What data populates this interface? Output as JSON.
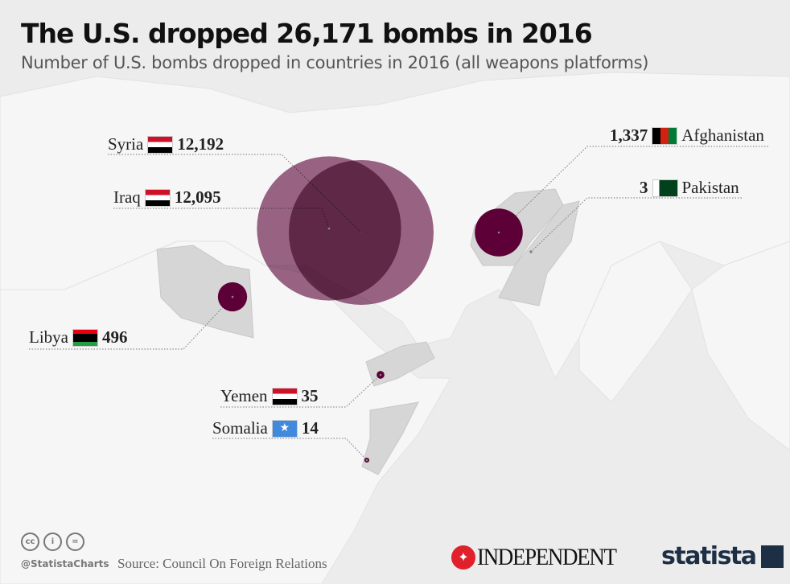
{
  "header": {
    "title": "The U.S. dropped 26,171 bombs in 2016",
    "subtitle": "Number of U.S. bombs dropped in countries in 2016 (all weapons platforms)"
  },
  "colors": {
    "bubble": "#5e0038",
    "overlap": "#250010",
    "highlight_land": "#d6d6d6",
    "land": "#f4f4f4",
    "sea": "#ececec"
  },
  "countries": [
    {
      "name": "Syria",
      "value": "12,192",
      "bombs": 12192,
      "flag": "syria-flag"
    },
    {
      "name": "Iraq",
      "value": "12,095",
      "bombs": 12095,
      "flag": "iraq-flag"
    },
    {
      "name": "Afghanistan",
      "value": "1,337",
      "bombs": 1337,
      "flag": "afghanistan-flag"
    },
    {
      "name": "Pakistan",
      "value": "3",
      "bombs": 3,
      "flag": "pakistan-flag"
    },
    {
      "name": "Libya",
      "value": "496",
      "bombs": 496,
      "flag": "libya-flag"
    },
    {
      "name": "Yemen",
      "value": "35",
      "bombs": 35,
      "flag": "yemen-flag"
    },
    {
      "name": "Somalia",
      "value": "14",
      "bombs": 14,
      "flag": "somalia-flag"
    }
  ],
  "footer": {
    "handle": "@StatistaCharts",
    "source": "Source: Council On Foreign Relations",
    "license_icons": [
      "cc-icon",
      "by-icon",
      "nd-icon"
    ],
    "independent_logo": "INDEPENDENT",
    "statista_logo": "statista"
  }
}
